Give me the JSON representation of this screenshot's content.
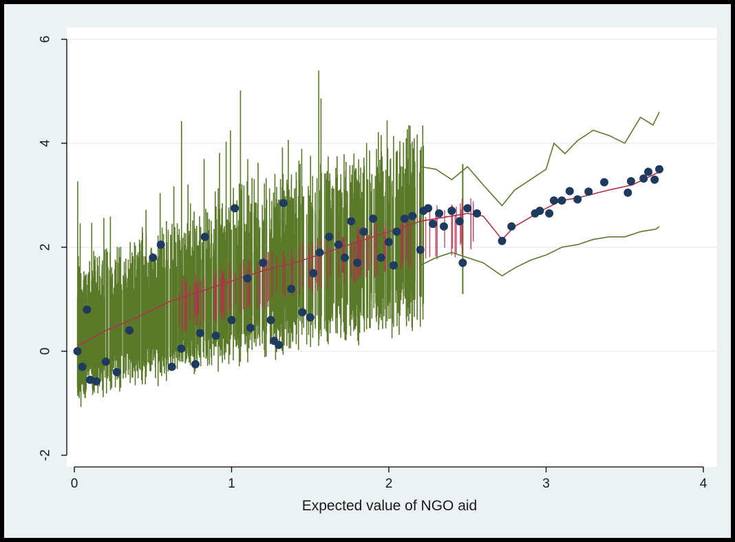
{
  "chart_data": {
    "type": "scatter",
    "title": "",
    "xlabel": "Expected value of NGO aid",
    "ylabel": "",
    "xlim": [
      0,
      4
    ],
    "ylim": [
      -2,
      6
    ],
    "xticks": [
      0,
      1,
      2,
      3,
      4
    ],
    "yticks": [
      -2,
      0,
      2,
      4,
      6
    ],
    "grid": true,
    "legend": "none",
    "colors": {
      "background": "#eaf2f3",
      "plot_area": "#ffffff",
      "points": "#1f3a5f",
      "fit_line": "#b0304a",
      "bands": "#5a7a2a",
      "grid": "#e3ecee",
      "frame": "#000000"
    },
    "series": [
      {
        "type": "scatter",
        "x": [
          0.02,
          0.05,
          0.08,
          0.1,
          0.14,
          0.2,
          0.27,
          0.35,
          0.5,
          0.55,
          0.62,
          0.68,
          0.77,
          0.8,
          0.83,
          0.9,
          1.0,
          1.02,
          1.1,
          1.12,
          1.2,
          1.25,
          1.27,
          1.3,
          1.33,
          1.38,
          1.45,
          1.5,
          1.52,
          1.56,
          1.62,
          1.68,
          1.72,
          1.76,
          1.8,
          1.84,
          1.9,
          1.95,
          2.0,
          2.03,
          2.05,
          2.1,
          2.15,
          2.2,
          2.22,
          2.25,
          2.28,
          2.32,
          2.35,
          2.4,
          2.45,
          2.47,
          2.5,
          2.56,
          2.72,
          2.78,
          2.93,
          2.96,
          3.02,
          3.05,
          3.1,
          3.15,
          3.2,
          3.27,
          3.37,
          3.52,
          3.54,
          3.62,
          3.65,
          3.69,
          3.72
        ],
        "y": [
          0.0,
          -0.3,
          0.8,
          -0.55,
          -0.58,
          -0.2,
          -0.4,
          0.4,
          1.8,
          2.05,
          -0.3,
          0.05,
          -0.25,
          0.35,
          2.2,
          0.3,
          0.6,
          2.75,
          1.4,
          0.45,
          1.7,
          0.6,
          0.2,
          0.12,
          2.85,
          1.2,
          0.75,
          0.65,
          1.5,
          1.9,
          2.2,
          2.05,
          1.8,
          2.5,
          1.7,
          2.3,
          2.55,
          1.8,
          2.1,
          1.65,
          2.3,
          2.55,
          2.6,
          1.95,
          2.7,
          2.75,
          2.45,
          2.65,
          2.4,
          2.7,
          2.5,
          1.7,
          2.75,
          2.65,
          2.12,
          2.4,
          2.65,
          2.7,
          2.65,
          2.9,
          2.9,
          3.08,
          2.92,
          3.07,
          3.25,
          3.05,
          3.27,
          3.32,
          3.45,
          3.3,
          3.5
        ]
      },
      {
        "type": "line",
        "x": [
          0.02,
          0.2,
          0.4,
          0.6,
          0.8,
          1.0,
          1.2,
          1.4,
          1.6,
          1.8,
          2.0,
          2.2,
          2.4,
          2.5,
          2.6,
          2.72,
          2.8,
          3.0,
          3.1,
          3.2,
          3.4,
          3.55,
          3.72
        ],
        "y": [
          0.1,
          0.4,
          0.65,
          0.95,
          1.15,
          1.35,
          1.55,
          1.7,
          1.9,
          2.1,
          2.3,
          2.5,
          2.6,
          2.65,
          2.6,
          2.15,
          2.4,
          2.75,
          2.9,
          2.95,
          3.1,
          3.2,
          3.45
        ]
      },
      {
        "type": "line",
        "x": [
          2.2,
          2.3,
          2.4,
          2.5,
          2.6,
          2.72,
          2.8,
          2.9,
          3.0,
          3.05,
          3.12,
          3.2,
          3.3,
          3.4,
          3.5,
          3.6,
          3.68,
          3.72
        ],
        "y": [
          3.55,
          3.5,
          3.3,
          3.55,
          3.2,
          2.8,
          3.1,
          3.3,
          3.5,
          4.0,
          3.8,
          4.05,
          4.25,
          4.15,
          4.0,
          4.5,
          4.35,
          4.6
        ]
      },
      {
        "type": "line",
        "x": [
          2.2,
          2.3,
          2.4,
          2.5,
          2.6,
          2.72,
          2.8,
          2.9,
          3.0,
          3.1,
          3.2,
          3.3,
          3.4,
          3.5,
          3.6,
          3.7,
          3.72
        ],
        "y": [
          1.65,
          1.8,
          1.9,
          1.8,
          1.7,
          1.45,
          1.6,
          1.75,
          1.85,
          2.0,
          2.05,
          2.15,
          2.2,
          2.2,
          2.3,
          2.35,
          2.4
        ]
      }
    ]
  }
}
